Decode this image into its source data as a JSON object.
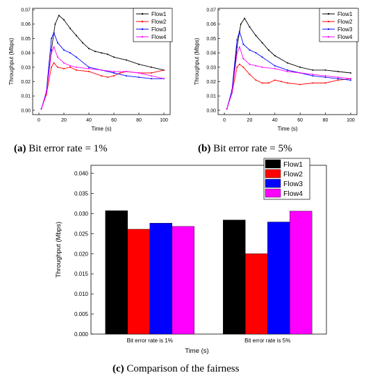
{
  "colors": {
    "flow1": "#000000",
    "flow2": "#ff0000",
    "flow3": "#0000ff",
    "flow4": "#ff00ff"
  },
  "chart_data": [
    {
      "id": "a",
      "type": "line",
      "caption_letter": "(a)",
      "caption_text": " Bit error rate = 1%",
      "xlabel": "Time (s)",
      "ylabel": "Throughput (Mbps)",
      "xlim": [
        -5,
        105
      ],
      "ylim": [
        -0.003,
        0.071
      ],
      "xticks": [
        0,
        20,
        40,
        60,
        80,
        100
      ],
      "yticks": [
        0.0,
        0.01,
        0.02,
        0.03,
        0.04,
        0.05,
        0.06,
        0.07
      ],
      "ytick_labels": [
        "0.00",
        "0.01",
        "0.02",
        "0.03",
        "0.04",
        "0.05",
        "0.06",
        "0.07"
      ],
      "legend": "top-right",
      "series": [
        {
          "name": "Flow1",
          "color_key": "flow1",
          "x": [
            2,
            6,
            10,
            13,
            16,
            20,
            25,
            30,
            35,
            40,
            45,
            50,
            55,
            60,
            70,
            80,
            90,
            100
          ],
          "y": [
            0.001,
            0.012,
            0.042,
            0.06,
            0.066,
            0.063,
            0.057,
            0.052,
            0.047,
            0.043,
            0.041,
            0.04,
            0.039,
            0.037,
            0.035,
            0.032,
            0.03,
            0.028
          ]
        },
        {
          "name": "Flow2",
          "color_key": "flow2",
          "x": [
            2,
            6,
            10,
            12,
            15,
            20,
            25,
            30,
            40,
            50,
            55,
            60,
            65,
            70,
            80,
            90,
            100
          ],
          "y": [
            0.001,
            0.011,
            0.03,
            0.033,
            0.03,
            0.029,
            0.03,
            0.028,
            0.027,
            0.024,
            0.023,
            0.024,
            0.026,
            0.027,
            0.026,
            0.026,
            0.028
          ]
        },
        {
          "name": "Flow3",
          "color_key": "flow3",
          "x": [
            2,
            6,
            10,
            12,
            15,
            20,
            25,
            30,
            40,
            50,
            60,
            70,
            80,
            90,
            100
          ],
          "y": [
            0.001,
            0.013,
            0.05,
            0.054,
            0.047,
            0.042,
            0.04,
            0.037,
            0.03,
            0.028,
            0.026,
            0.024,
            0.023,
            0.022,
            0.022
          ]
        },
        {
          "name": "Flow4",
          "color_key": "flow4",
          "x": [
            2,
            6,
            10,
            12,
            15,
            20,
            25,
            30,
            40,
            50,
            60,
            70,
            80,
            90,
            100
          ],
          "y": [
            0.001,
            0.012,
            0.04,
            0.044,
            0.037,
            0.033,
            0.031,
            0.03,
            0.029,
            0.028,
            0.027,
            0.027,
            0.026,
            0.024,
            0.022
          ]
        }
      ]
    },
    {
      "id": "b",
      "type": "line",
      "caption_letter": "(b)",
      "caption_text": " Bit error rate = 5%",
      "xlabel": "Time (s)",
      "ylabel": "Throughput (Mbps)",
      "xlim": [
        -5,
        105
      ],
      "ylim": [
        -0.003,
        0.071
      ],
      "xticks": [
        0,
        20,
        40,
        60,
        80,
        100
      ],
      "yticks": [
        0.0,
        0.01,
        0.02,
        0.03,
        0.04,
        0.05,
        0.06,
        0.07
      ],
      "ytick_labels": [
        "0.00",
        "0.01",
        "0.02",
        "0.03",
        "0.04",
        "0.05",
        "0.06",
        "0.07"
      ],
      "legend": "top-right",
      "series": [
        {
          "name": "Flow1",
          "color_key": "flow1",
          "x": [
            2,
            6,
            10,
            13,
            16,
            20,
            25,
            30,
            35,
            40,
            50,
            60,
            70,
            80,
            90,
            100
          ],
          "y": [
            0.001,
            0.013,
            0.044,
            0.06,
            0.064,
            0.058,
            0.052,
            0.047,
            0.042,
            0.038,
            0.033,
            0.03,
            0.028,
            0.028,
            0.027,
            0.026
          ]
        },
        {
          "name": "Flow2",
          "color_key": "flow2",
          "x": [
            2,
            6,
            10,
            12,
            15,
            20,
            25,
            30,
            35,
            40,
            45,
            50,
            60,
            70,
            80,
            90,
            100
          ],
          "y": [
            0.001,
            0.012,
            0.03,
            0.032,
            0.03,
            0.025,
            0.021,
            0.019,
            0.019,
            0.021,
            0.02,
            0.019,
            0.018,
            0.019,
            0.019,
            0.021,
            0.022
          ]
        },
        {
          "name": "Flow3",
          "color_key": "flow3",
          "x": [
            2,
            6,
            10,
            12,
            15,
            20,
            25,
            30,
            40,
            50,
            60,
            70,
            80,
            90,
            100
          ],
          "y": [
            0.001,
            0.014,
            0.049,
            0.055,
            0.046,
            0.042,
            0.04,
            0.037,
            0.031,
            0.028,
            0.026,
            0.024,
            0.023,
            0.022,
            0.021
          ]
        },
        {
          "name": "Flow4",
          "color_key": "flow4",
          "x": [
            2,
            6,
            10,
            12,
            15,
            20,
            25,
            30,
            40,
            50,
            60,
            70,
            80,
            90,
            100
          ],
          "y": [
            0.001,
            0.012,
            0.04,
            0.044,
            0.036,
            0.032,
            0.031,
            0.03,
            0.029,
            0.027,
            0.026,
            0.025,
            0.024,
            0.023,
            0.022
          ]
        }
      ]
    },
    {
      "id": "c",
      "type": "bar",
      "caption_letter": "(c)",
      "caption_text": " Comparison of the fairness",
      "xlabel": "Time (s)",
      "ylabel": "Throughput (Mbps)",
      "categories": [
        "Bit error rate is 1%",
        "Bit error rate is 5%"
      ],
      "ylim": [
        0,
        0.042
      ],
      "yticks": [
        0.0,
        0.005,
        0.01,
        0.015,
        0.02,
        0.025,
        0.03,
        0.035,
        0.04
      ],
      "ytick_labels": [
        "0.000",
        "0.005",
        "0.010",
        "0.015",
        "0.020",
        "0.025",
        "0.030",
        "0.035",
        "0.040"
      ],
      "legend": "top-right",
      "series": [
        {
          "name": "Flow1",
          "color_key": "flow1",
          "values": [
            0.0307,
            0.0284
          ]
        },
        {
          "name": "Flow2",
          "color_key": "flow2",
          "values": [
            0.0261,
            0.02
          ]
        },
        {
          "name": "Flow3",
          "color_key": "flow3",
          "values": [
            0.0276,
            0.0279
          ]
        },
        {
          "name": "Flow4",
          "color_key": "flow4",
          "values": [
            0.0268,
            0.0306
          ]
        }
      ]
    }
  ]
}
